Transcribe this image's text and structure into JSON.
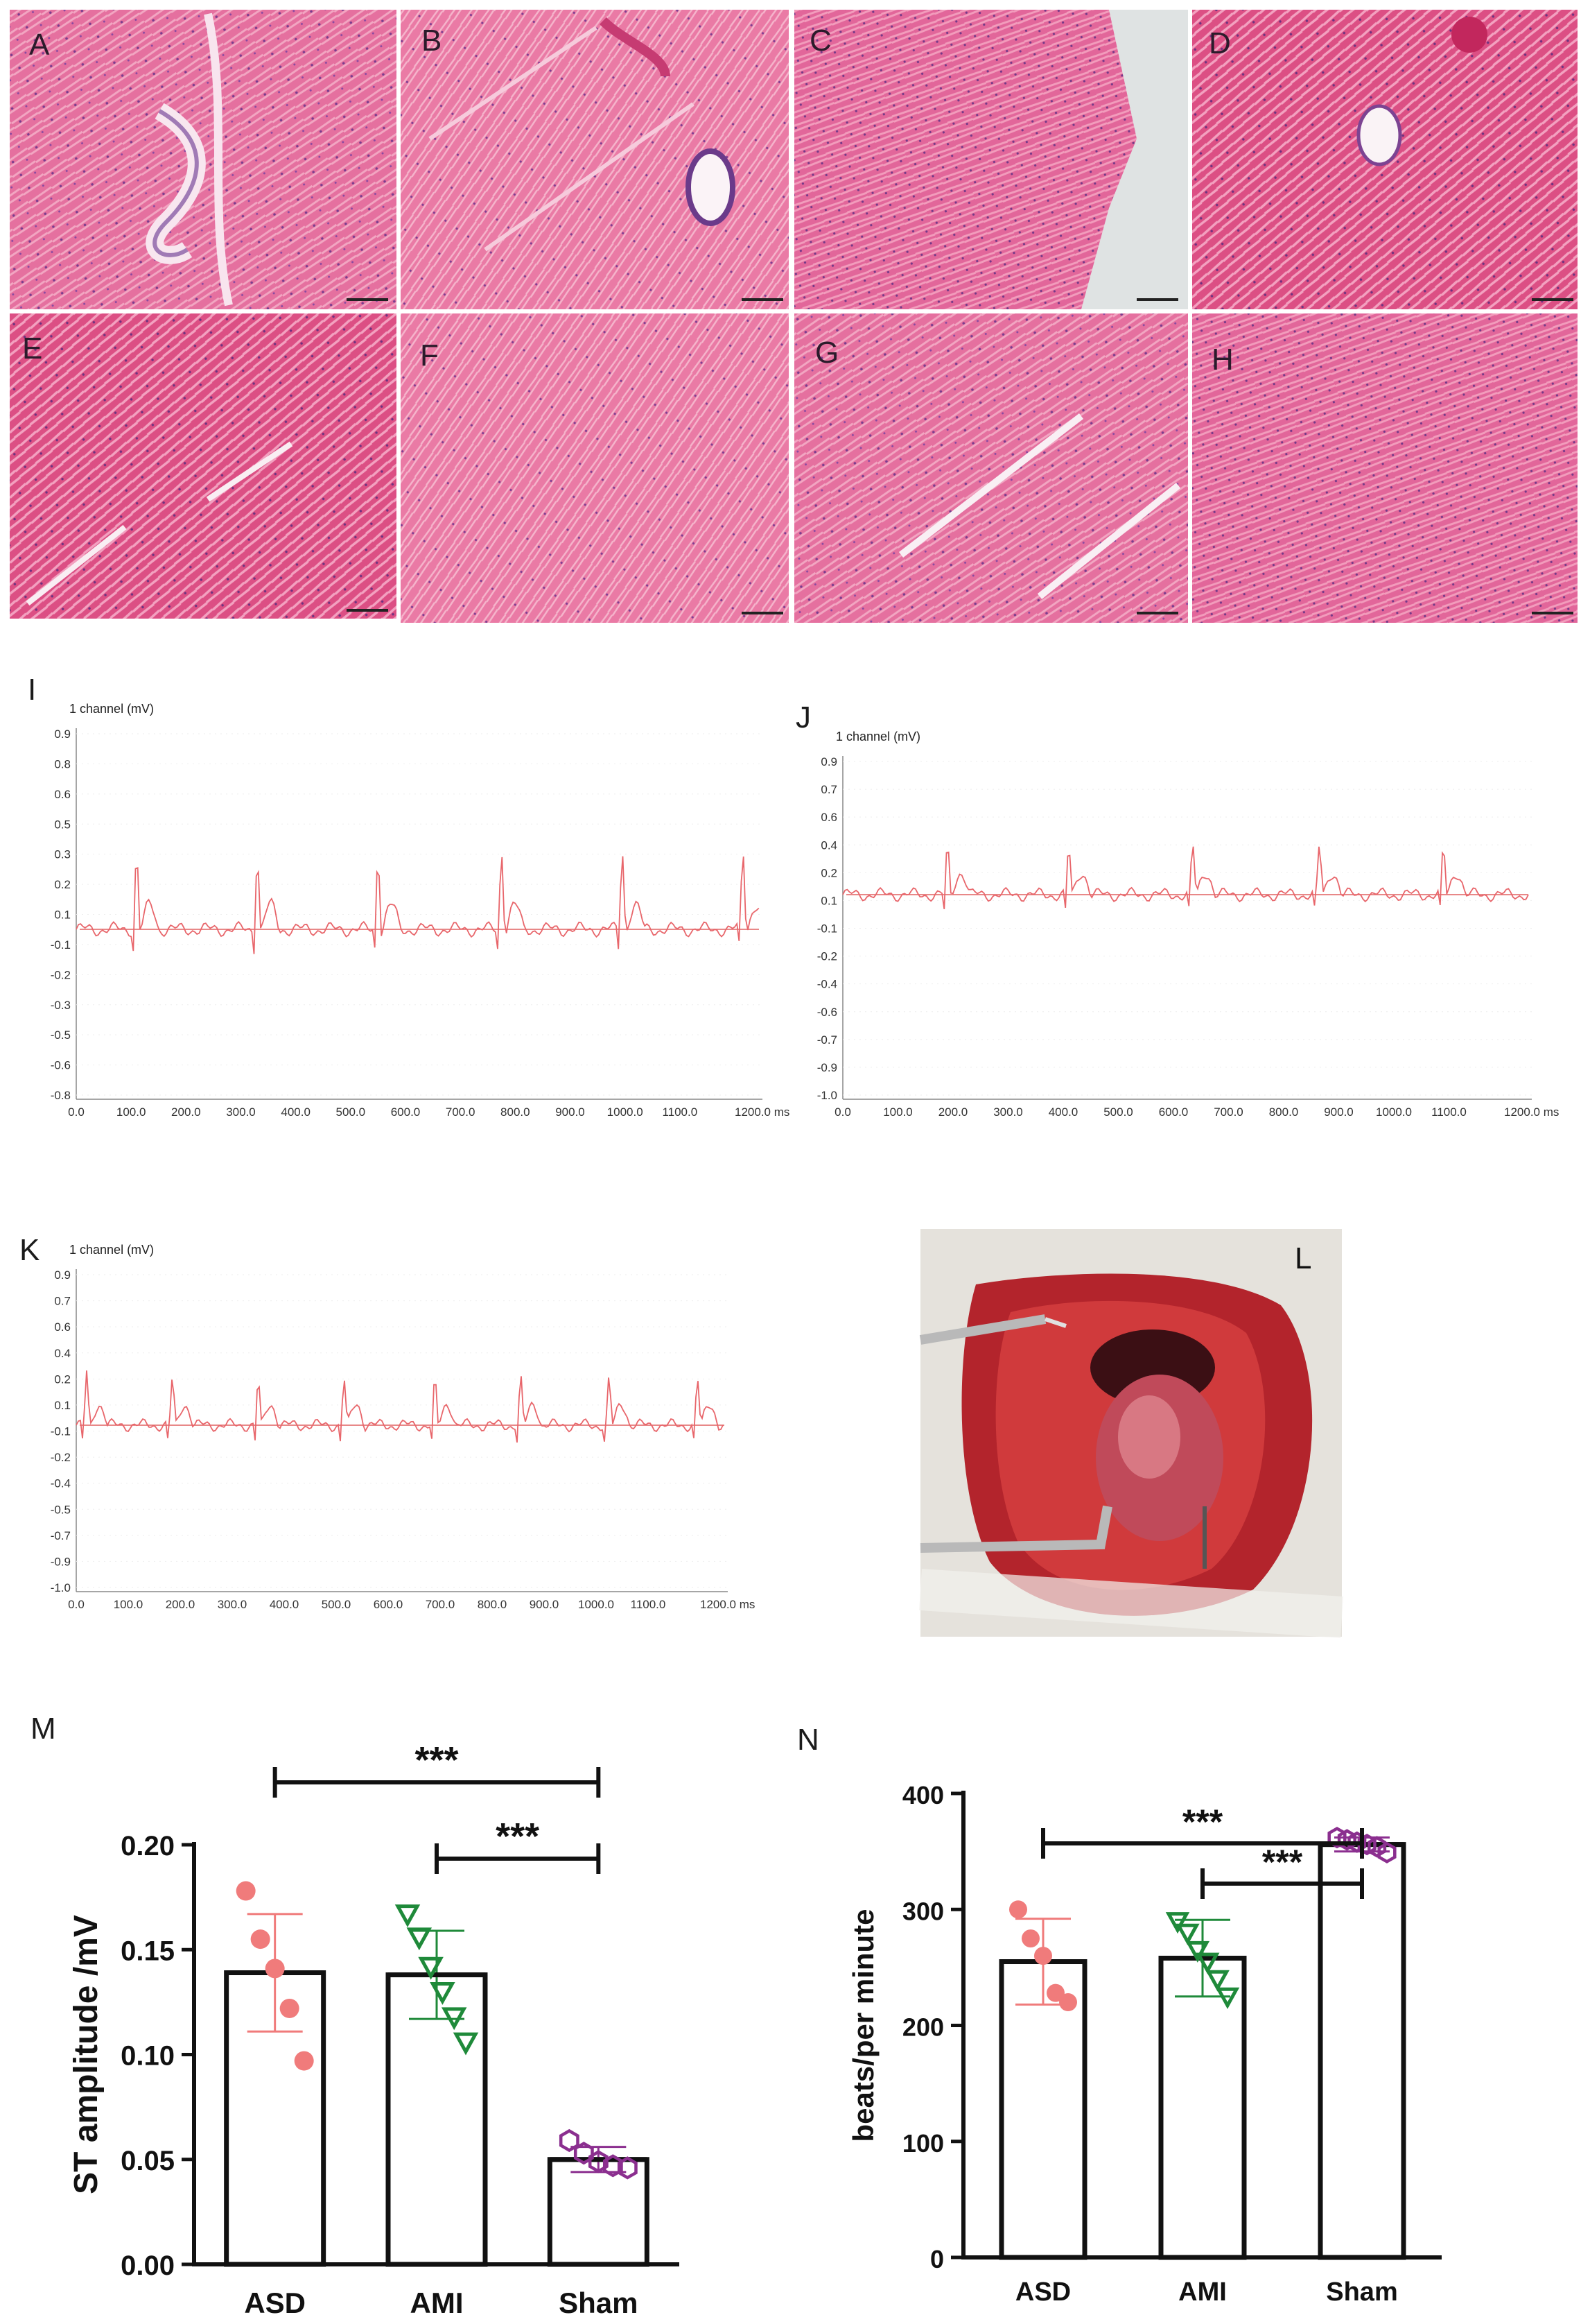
{
  "histology": {
    "panels": [
      {
        "label": "A"
      },
      {
        "label": "B"
      },
      {
        "label": "C"
      },
      {
        "label": "D"
      },
      {
        "label": "E"
      },
      {
        "label": "F"
      },
      {
        "label": "G"
      },
      {
        "label": "H"
      }
    ]
  },
  "ecg": {
    "unit_label": "1 channel (mV)",
    "panel_I": {
      "label": "I",
      "y_ticks": [
        "0.9",
        "0.8",
        "0.6",
        "0.5",
        "0.3",
        "0.2",
        "0.1",
        "-0.1",
        "-0.2",
        "-0.3",
        "-0.5",
        "-0.6",
        "-0.8"
      ],
      "x_ticks": [
        "0.0",
        "100.0",
        "200.0",
        "300.0",
        "400.0",
        "500.0",
        "600.0",
        "700.0",
        "800.0",
        "900.0",
        "1000.0",
        "1100.0",
        "1200.0 ms"
      ],
      "peaks_ms": [
        110,
        330,
        550,
        775,
        995,
        1215
      ],
      "peak_mv": 0.3
    },
    "panel_J": {
      "label": "J",
      "y_ticks": [
        "0.9",
        "0.7",
        "0.6",
        "0.4",
        "0.2",
        "0.1",
        "-0.1",
        "-0.2",
        "-0.4",
        "-0.6",
        "-0.7",
        "-0.9",
        "-1.0"
      ],
      "x_ticks": [
        "0.0",
        "100.0",
        "200.0",
        "300.0",
        "400.0",
        "500.0",
        "600.0",
        "700.0",
        "800.0",
        "900.0",
        "1000.0",
        "1100.0",
        "1200.0 ms"
      ],
      "peaks_ms": [
        190,
        410,
        635,
        865,
        1090
      ],
      "peak_mv": 0.2
    },
    "panel_K": {
      "label": "K",
      "y_ticks": [
        "0.9",
        "0.7",
        "0.6",
        "0.4",
        "0.2",
        "0.1",
        "-0.1",
        "-0.2",
        "-0.4",
        "-0.5",
        "-0.7",
        "-0.9",
        "-1.0"
      ],
      "x_ticks": [
        "0.0",
        "100.0",
        "200.0",
        "300.0",
        "400.0",
        "500.0",
        "600.0",
        "700.0",
        "800.0",
        "900.0",
        "1000.0",
        "1100.0",
        "1200.0 ms"
      ],
      "peaks_ms": [
        20,
        185,
        350,
        515,
        690,
        855,
        1025,
        1195
      ],
      "peak_mv": 0.2
    }
  },
  "photo": {
    "label": "L"
  },
  "chart_data": [
    {
      "panel": "M",
      "type": "bar",
      "categories": [
        "ASD",
        "AMI",
        "Sham"
      ],
      "values": [
        0.139,
        0.138,
        0.05
      ],
      "error_sd": [
        0.028,
        0.021,
        0.006
      ],
      "points": [
        [
          0.178,
          0.155,
          0.141,
          0.122,
          0.097
        ],
        [
          0.167,
          0.156,
          0.142,
          0.13,
          0.118,
          0.106
        ],
        [
          0.059,
          0.053,
          0.049,
          0.047,
          0.046
        ]
      ],
      "ylabel": "ST amplitude /mV",
      "ylim": [
        0,
        0.2
      ],
      "yticks": [
        "0.00",
        "0.05",
        "0.10",
        "0.15",
        "0.20"
      ],
      "significance": [
        {
          "pair": [
            "ASD",
            "Sham"
          ],
          "text": "***"
        },
        {
          "pair": [
            "AMI",
            "Sham"
          ],
          "text": "***"
        }
      ],
      "colors": {
        "ASD": "#f07b7b",
        "AMI": "#1f8a3a",
        "Sham": "#8b2f8f"
      },
      "markers": {
        "ASD": "circle",
        "AMI": "triangle-down",
        "Sham": "hexagon"
      }
    },
    {
      "panel": "N",
      "type": "bar",
      "categories": [
        "ASD",
        "AMI",
        "Sham"
      ],
      "values": [
        255,
        258,
        356
      ],
      "error_sd": [
        37,
        33,
        6
      ],
      "points": [
        [
          300,
          275,
          260,
          228,
          220
        ],
        [
          290,
          280,
          265,
          255,
          240,
          225
        ],
        [
          362,
          360,
          358,
          356,
          354,
          349
        ]
      ],
      "ylabel": "beats/per minute",
      "ylim": [
        0,
        400
      ],
      "yticks": [
        "0",
        "100",
        "200",
        "300",
        "400"
      ],
      "significance": [
        {
          "pair": [
            "ASD",
            "Sham"
          ],
          "text": "***"
        },
        {
          "pair": [
            "AMI",
            "Sham"
          ],
          "text": "***"
        }
      ],
      "colors": {
        "ASD": "#f07b7b",
        "AMI": "#1f8a3a",
        "Sham": "#8b2f8f"
      },
      "markers": {
        "ASD": "circle",
        "AMI": "triangle-down",
        "Sham": "hexagon"
      }
    }
  ],
  "chart_labels": {
    "M": "M",
    "N": "N"
  }
}
